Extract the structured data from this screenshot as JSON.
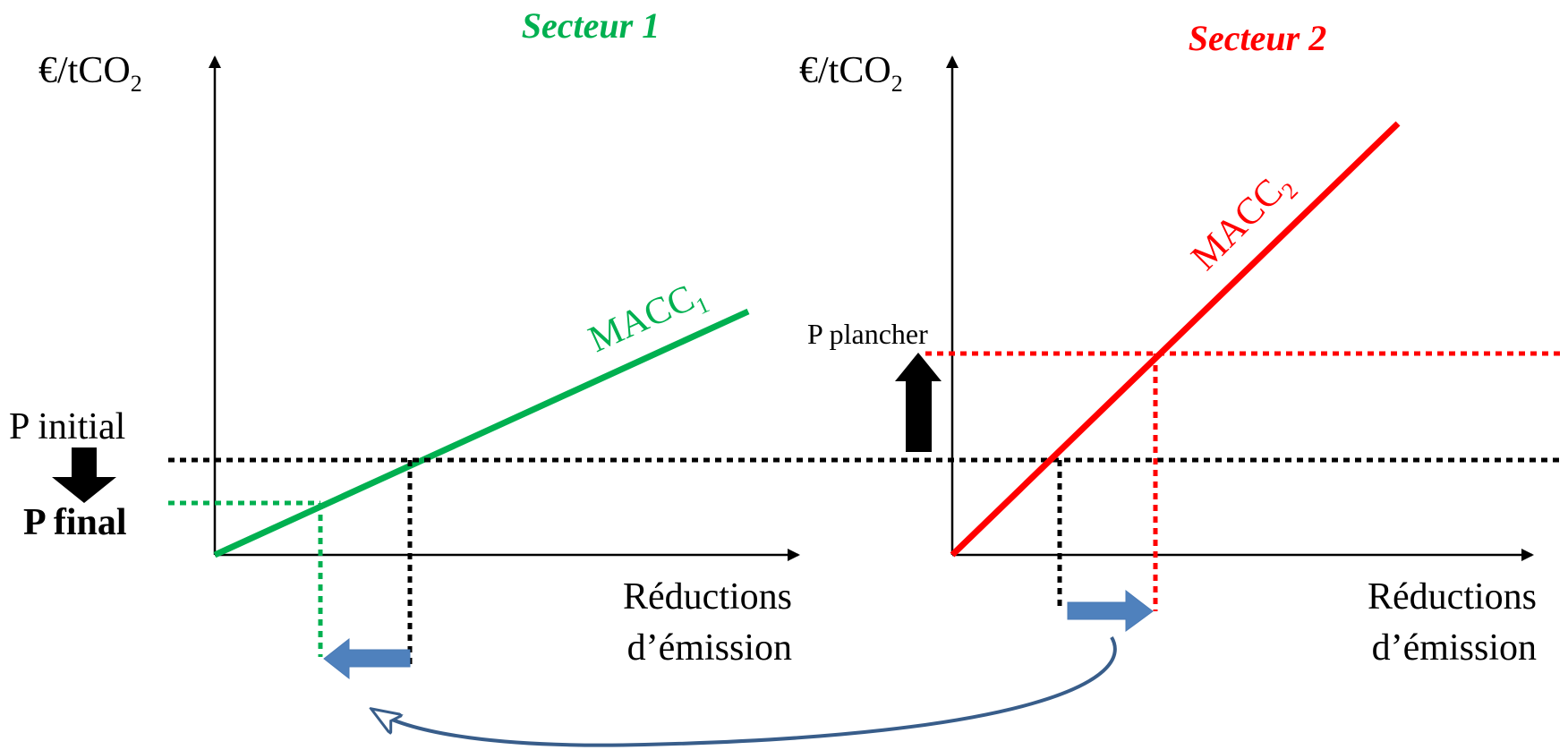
{
  "left": {
    "title": "Secteur 1",
    "title_color": "#00b050",
    "y_axis_label": "€/tCO",
    "y_axis_sub": "2",
    "x_axis_label_line1": "Réductions",
    "x_axis_label_line2": "d’émission",
    "curve_label": "MACC",
    "curve_sub": "1",
    "curve_color": "#00b050",
    "price_initial_label": "P initial",
    "price_final_label": "P final"
  },
  "right": {
    "title": "Secteur 2",
    "title_color": "#ff0000",
    "y_axis_label": "€/tCO",
    "y_axis_sub": "2",
    "x_axis_label_line1": "Réductions",
    "x_axis_label_line2": "d’émission",
    "curve_label": "MACC",
    "curve_sub": "2",
    "curve_color": "#ff0000",
    "price_floor_label": "P plancher"
  },
  "colors": {
    "shift_arrow": "#4f81bd",
    "curved_arrow": "#385d8a",
    "reference_line": "#000000"
  }
}
